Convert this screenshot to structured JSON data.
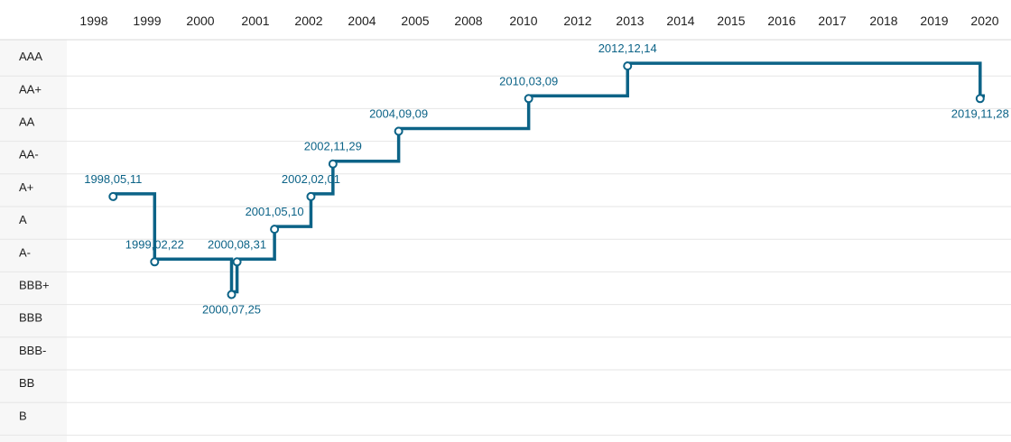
{
  "chart_data": {
    "type": "line",
    "step": true,
    "title": "",
    "xlabel": "",
    "ylabel": "",
    "x_ticks": [
      "1998",
      "1999",
      "2000",
      "2001",
      "2002",
      "2004",
      "2005",
      "2008",
      "2010",
      "2012",
      "2013",
      "2014",
      "2015",
      "2016",
      "2017",
      "2018",
      "2019",
      "2020"
    ],
    "y_categories": [
      "AAA",
      "AA+",
      "AA",
      "AA-",
      "A+",
      "A",
      "A-",
      "BBB+",
      "BBB",
      "BBB-",
      "BB",
      "B"
    ],
    "grid": true,
    "colors": {
      "line": "#0c6387",
      "label": "#0c6387",
      "grid": "#e6e6e6",
      "axis_band": "#f7f7f7"
    },
    "events": [
      {
        "date": "1998,05,11",
        "rating": "A+"
      },
      {
        "date": "1999,02,22",
        "rating": "A-"
      },
      {
        "date": "2000,07,25",
        "rating": "BBB+"
      },
      {
        "date": "2000,08,31",
        "rating": "A-"
      },
      {
        "date": "2001,05,10",
        "rating": "A"
      },
      {
        "date": "2002,02,01",
        "rating": "A+"
      },
      {
        "date": "2002,11,29",
        "rating": "AA-"
      },
      {
        "date": "2004,09,09",
        "rating": "AA"
      },
      {
        "date": "2010,03,09",
        "rating": "AA+"
      },
      {
        "date": "2012,12,14",
        "rating": "AAA"
      },
      {
        "date": "2019,11,28",
        "rating": "AA+"
      }
    ],
    "end_x": "2020"
  }
}
